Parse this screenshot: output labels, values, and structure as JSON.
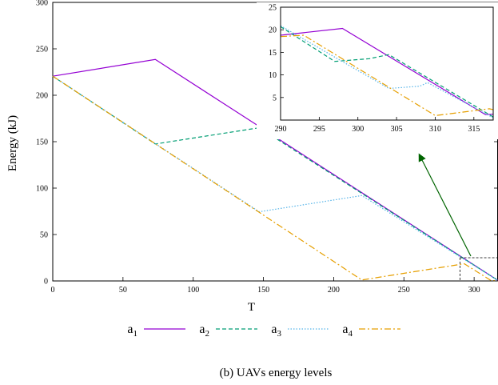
{
  "chart_data": [
    {
      "type": "line",
      "title": "",
      "xlabel": "T",
      "ylabel": "Energy (kJ)",
      "xlim": [
        0,
        317
      ],
      "ylim": [
        0,
        300
      ],
      "xticks": [
        0,
        50,
        100,
        150,
        200,
        250,
        300
      ],
      "yticks": [
        0,
        50,
        100,
        150,
        200,
        250,
        300
      ],
      "grid": false,
      "legend_position": "bottom",
      "series": [
        {
          "name": "a",
          "subscript": "1",
          "color": "#9400d3",
          "dash": "solid",
          "x": [
            0,
            73,
            317
          ],
          "y": [
            220.5,
            238.5,
            0.5
          ]
        },
        {
          "name": "a",
          "subscript": "2",
          "color": "#009e73",
          "dash": "dashed",
          "x": [
            0,
            73,
            147,
            317
          ],
          "y": [
            220.5,
            147.5,
            165,
            0.5
          ]
        },
        {
          "name": "a",
          "subscript": "3",
          "color": "#56b4e9",
          "dash": "dotted",
          "x": [
            0,
            147,
            220,
            317
          ],
          "y": [
            220.5,
            74.5,
            92,
            0.5
          ]
        },
        {
          "name": "a",
          "subscript": "4",
          "color": "#e69f00",
          "dash": "dashdot",
          "x": [
            0,
            220,
            293,
            312,
            317
          ],
          "y": [
            220.5,
            1,
            18.5,
            0.5,
            0
          ]
        }
      ]
    },
    {
      "type": "line",
      "title": "",
      "xlim": [
        290,
        317.5
      ],
      "ylim": [
        0,
        25
      ],
      "xticks": [
        290,
        295,
        300,
        305,
        310,
        315
      ],
      "yticks": [
        0,
        5,
        10,
        15,
        20,
        25
      ],
      "series_ref": "same as main chart",
      "series": [
        {
          "name": "a",
          "subscript": "1",
          "color": "#9400d3",
          "dash": "solid",
          "x": [
            290,
            298,
            316.5,
            317.5
          ],
          "y": [
            18.8,
            20.3,
            1.2,
            1.3
          ]
        },
        {
          "name": "a",
          "subscript": "2",
          "color": "#009e73",
          "dash": "dashed",
          "x": [
            290,
            297,
            301.5,
            304,
            317.5
          ],
          "y": [
            20.7,
            13,
            13.6,
            14.5,
            0.7
          ]
        },
        {
          "name": "a",
          "subscript": "3",
          "color": "#56b4e9",
          "dash": "dotted",
          "x": [
            290,
            304,
            308,
            309,
            317.5
          ],
          "y": [
            20.9,
            7,
            7.5,
            8.3,
            0.5
          ]
        },
        {
          "name": "a",
          "subscript": "4",
          "color": "#e69f00",
          "dash": "dashdot",
          "x": [
            290,
            293,
            310,
            317,
            317.5
          ],
          "y": [
            18.5,
            18.8,
            1,
            2.5,
            2.3
          ]
        }
      ]
    }
  ],
  "caption": "(b) UAVs energy levels",
  "annotation": {
    "arrow_color": "#006400",
    "zoom_box_x": [
      290,
      317
    ],
    "zoom_box_y": [
      0,
      25
    ]
  }
}
